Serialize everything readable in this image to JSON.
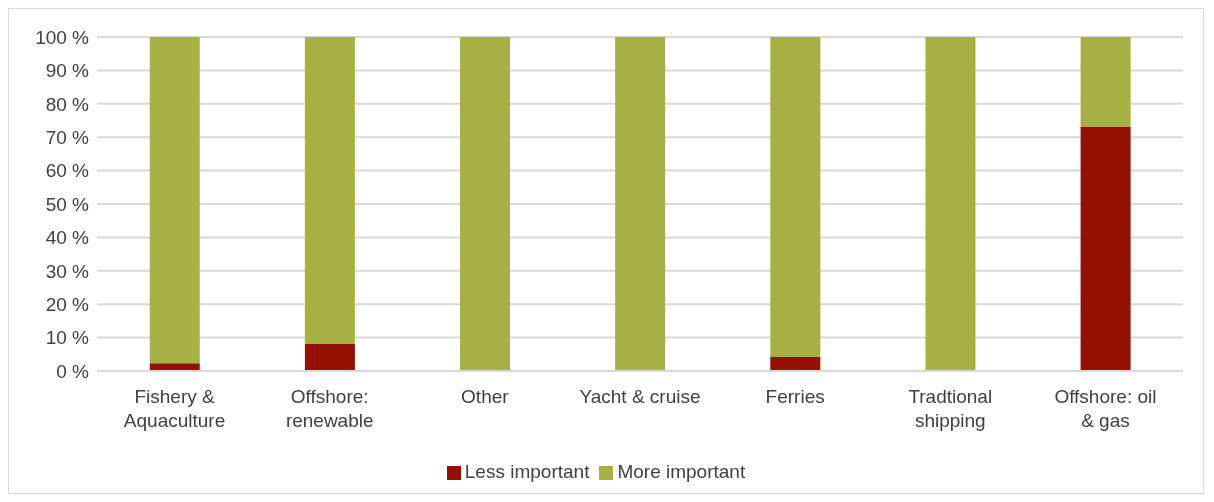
{
  "chart_data": {
    "type": "bar",
    "stacked": true,
    "categories": [
      "Fishery & Aquaculture",
      "Offshore: renewable",
      "Other",
      "Yacht & cruise",
      "Ferries",
      "Tradtional shipping",
      "Offshore: oil & gas"
    ],
    "series": [
      {
        "name": "Less important",
        "color": "#941100",
        "values": [
          2.3,
          8.1,
          0,
          0,
          4.2,
          0,
          73.2
        ]
      },
      {
        "name": "More important",
        "color": "#a5b142",
        "values": [
          97.7,
          91.9,
          100,
          100,
          95.8,
          100,
          26.8
        ]
      }
    ],
    "ylim": [
      0,
      100
    ],
    "yticks": [
      {
        "value": 0,
        "label": "0 %"
      },
      {
        "value": 10,
        "label": "10 %"
      },
      {
        "value": 20,
        "label": "20 %"
      },
      {
        "value": 30,
        "label": "30 %"
      },
      {
        "value": 40,
        "label": "40 %"
      },
      {
        "value": 50,
        "label": "50 %"
      },
      {
        "value": 60,
        "label": "60 %"
      },
      {
        "value": 70,
        "label": "70 %"
      },
      {
        "value": 80,
        "label": "80 %"
      },
      {
        "value": 90,
        "label": "90 %"
      },
      {
        "value": 100,
        "label": "100 %"
      }
    ],
    "grid": "y",
    "legend": "bottom"
  }
}
